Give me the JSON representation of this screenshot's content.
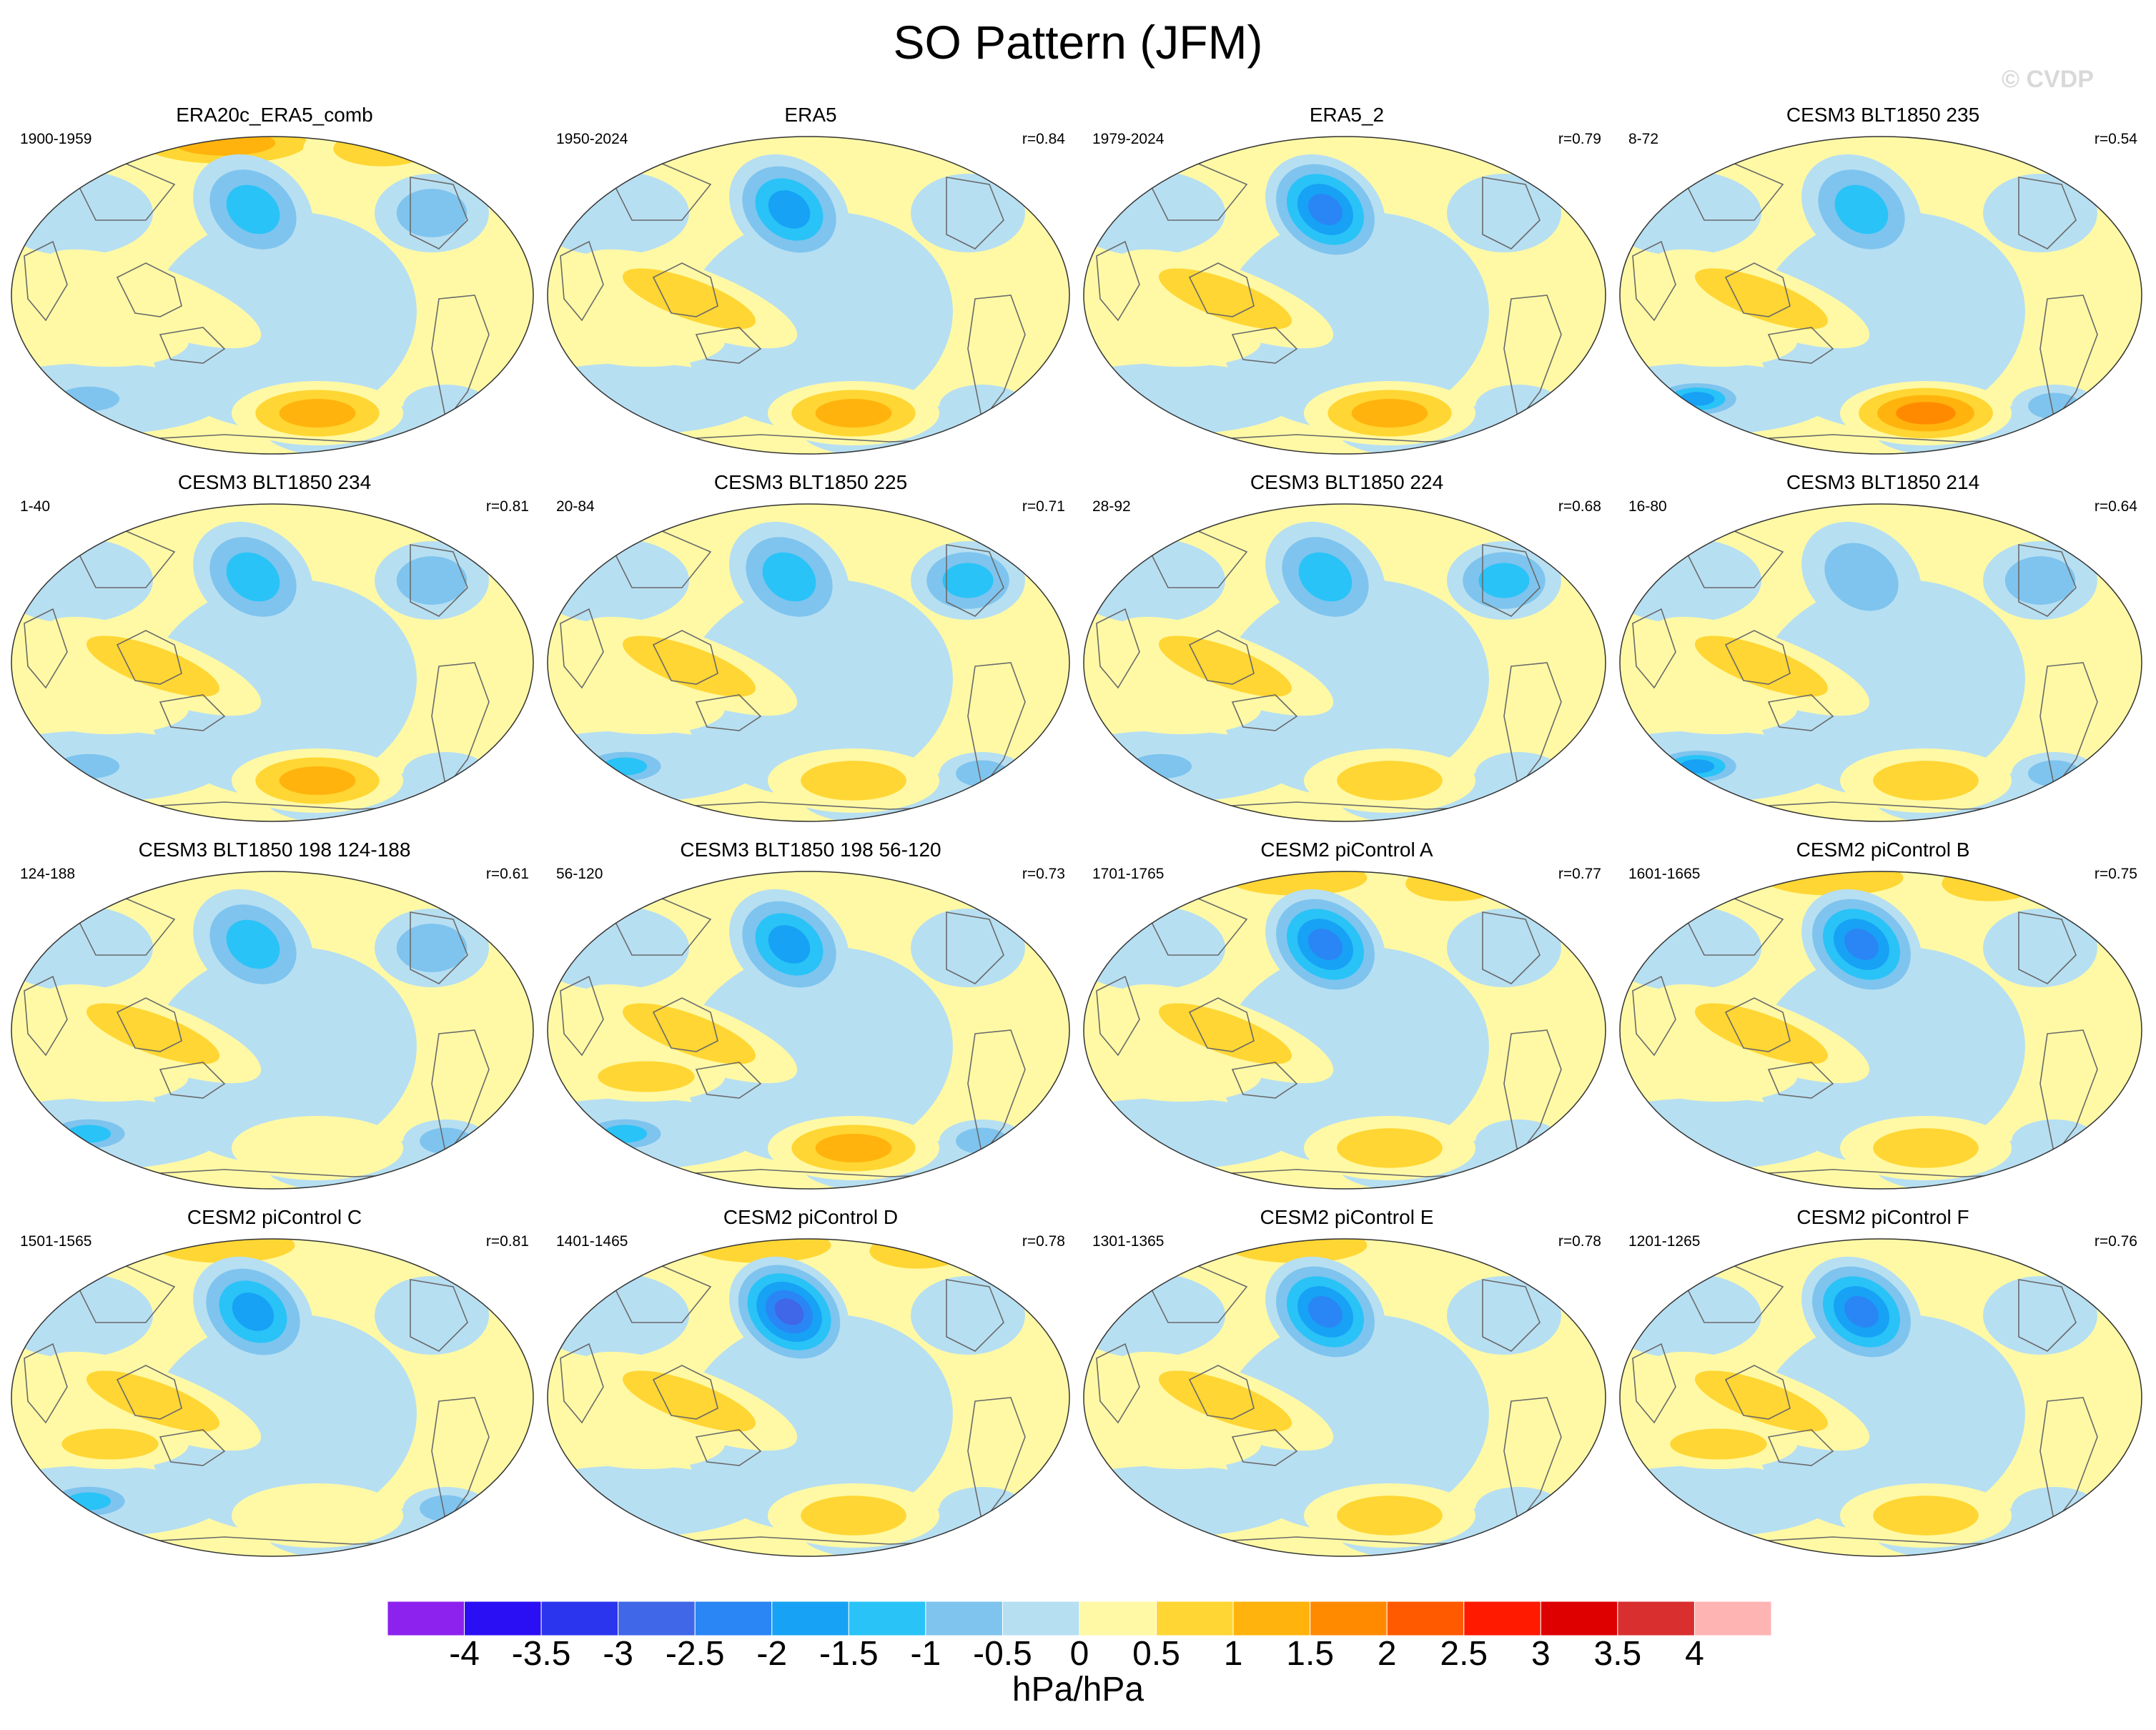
{
  "title": "SO Pattern (JFM)",
  "watermark": "© CVDP",
  "panels": [
    {
      "title": "ERA20c_ERA5_comb",
      "years": "1900-1959",
      "r": "",
      "pattern": {
        "npac": -1.8,
        "polar": 1.5,
        "spac": 1.6,
        "natl": -1.0,
        "so_low": -1.1,
        "ind": 0.8
      }
    },
    {
      "title": "ERA5",
      "years": "1950-2024",
      "r": "r=0.84",
      "pattern": {
        "npac": -2.0,
        "polar": 0.6,
        "spac": 1.5,
        "natl": -0.6,
        "so_low": -0.6,
        "ind": 1.0
      }
    },
    {
      "title": "ERA5_2",
      "years": "1979-2024",
      "r": "r=0.79",
      "pattern": {
        "npac": -2.8,
        "polar": 0.8,
        "spac": 1.6,
        "natl": -0.8,
        "so_low": -0.6,
        "ind": 1.0
      }
    },
    {
      "title": "CESM3 BLT1850 235",
      "years": "8-72",
      "r": "r=0.54",
      "pattern": {
        "npac": -1.6,
        "polar": 0.9,
        "spac": 2.0,
        "natl": -0.9,
        "so_low": -2.0,
        "ind": 1.0
      }
    },
    {
      "title": "CESM3 BLT1850 234",
      "years": "1-40",
      "r": "r=0.81",
      "pattern": {
        "npac": -1.7,
        "polar": 0.6,
        "spac": 1.6,
        "natl": -1.0,
        "so_low": -1.4,
        "ind": 1.0
      }
    },
    {
      "title": "CESM3 BLT1850 225",
      "years": "20-84",
      "r": "r=0.71",
      "pattern": {
        "npac": -1.9,
        "polar": 0.6,
        "spac": 1.1,
        "natl": -1.5,
        "so_low": -1.6,
        "ind": 1.1
      }
    },
    {
      "title": "CESM3 BLT1850 224",
      "years": "28-92",
      "r": "r=0.68",
      "pattern": {
        "npac": -1.6,
        "polar": 0.5,
        "spac": 1.4,
        "natl": -1.6,
        "so_low": -1.0,
        "ind": 1.1
      }
    },
    {
      "title": "CESM3 BLT1850 214",
      "years": "16-80",
      "r": "r=0.64",
      "pattern": {
        "npac": -1.4,
        "polar": 0.5,
        "spac": 1.2,
        "natl": -1.3,
        "so_low": -2.0,
        "ind": 1.1
      }
    },
    {
      "title": "CESM3 BLT1850 198 124-188",
      "years": "124-188",
      "r": "r=0.61",
      "pattern": {
        "npac": -1.8,
        "polar": 0.7,
        "spac": 0.9,
        "natl": -1.2,
        "so_low": -1.8,
        "ind": 1.0
      }
    },
    {
      "title": "CESM3 BLT1850 198 56-120",
      "years": "56-120",
      "r": "r=0.73",
      "pattern": {
        "npac": -2.0,
        "polar": 0.6,
        "spac": 1.6,
        "natl": -0.9,
        "so_low": -1.7,
        "ind": 1.2
      }
    },
    {
      "title": "CESM2 piControl A",
      "years": "1701-1765",
      "r": "r=0.77",
      "pattern": {
        "npac": -2.9,
        "polar": 1.3,
        "spac": 1.1,
        "natl": -0.9,
        "so_low": -0.9,
        "ind": 1.1
      }
    },
    {
      "title": "CESM2 piControl B",
      "years": "1601-1665",
      "r": "r=0.75",
      "pattern": {
        "npac": -2.6,
        "polar": 1.4,
        "spac": 1.1,
        "natl": -0.8,
        "so_low": -0.8,
        "ind": 1.1
      }
    },
    {
      "title": "CESM2 piControl C",
      "years": "1501-1565",
      "r": "r=0.81",
      "pattern": {
        "npac": -2.4,
        "polar": 1.0,
        "spac": 0.8,
        "natl": -0.7,
        "so_low": -1.5,
        "ind": 1.2
      }
    },
    {
      "title": "CESM2 piControl D",
      "years": "1401-1465",
      "r": "r=0.78",
      "pattern": {
        "npac": -3.0,
        "polar": 1.4,
        "spac": 1.0,
        "natl": -0.6,
        "so_low": -0.7,
        "ind": 1.1
      }
    },
    {
      "title": "CESM2 piControl E",
      "years": "1301-1365",
      "r": "r=0.78",
      "pattern": {
        "npac": -2.5,
        "polar": 1.0,
        "spac": 1.4,
        "natl": -0.7,
        "so_low": -0.8,
        "ind": 1.1
      }
    },
    {
      "title": "CESM2 piControl F",
      "years": "1201-1265",
      "r": "r=0.76",
      "pattern": {
        "npac": -2.5,
        "polar": 0.9,
        "spac": 1.1,
        "natl": -0.7,
        "so_low": -0.7,
        "ind": 1.2
      }
    }
  ],
  "colorbar": {
    "units": "hPa/hPa",
    "labels": [
      "-4",
      "-3.5",
      "-3",
      "-2.5",
      "-2",
      "-1.5",
      "-1",
      "-0.5",
      "0",
      "0.5",
      "1",
      "1.5",
      "2",
      "2.5",
      "3",
      "3.5",
      "4"
    ],
    "colors": [
      "#8d22ee",
      "#2a0ff5",
      "#2b35ee",
      "#3f67e8",
      "#2a86f5",
      "#17a2f5",
      "#29c3f7",
      "#7ec4ee",
      "#b7dff2",
      "#fff9a5",
      "#ffd633",
      "#ffb30c",
      "#ff8a00",
      "#ff5a00",
      "#ff1a00",
      "#de0000",
      "#d92f2f",
      "#ffb4b4"
    ]
  },
  "land_color": "#6a6a6a"
}
